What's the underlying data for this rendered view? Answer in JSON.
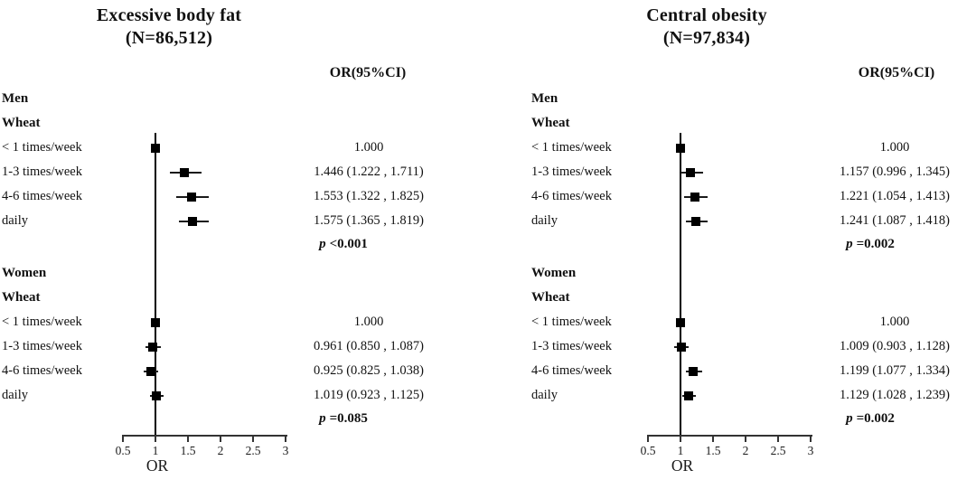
{
  "chart_data": [
    {
      "type": "forest",
      "title": "Excessive body fat",
      "n_label": "(N=86,512)",
      "or_header": "OR(95%CI)",
      "xlabel": "OR",
      "axis_ticks": [
        0.5,
        1,
        1.5,
        2,
        2.5,
        3
      ],
      "axis_tick_labels": [
        "0.5",
        "1",
        "1.5",
        "2",
        "2.5",
        "3"
      ],
      "axis_range": [
        0.5,
        3
      ],
      "reference_line": 1,
      "groups": [
        {
          "sex": "Men",
          "food": "Wheat",
          "p_sym": "p",
          "p_val": "<0.001",
          "rows": [
            {
              "label": "< 1 times/week",
              "or": 1.0,
              "ci_low": null,
              "ci_high": null,
              "or_text": "1.000"
            },
            {
              "label": "1-3 times/week",
              "or": 1.446,
              "ci_low": 1.222,
              "ci_high": 1.711,
              "or_text": "1.446 (1.222 , 1.711)"
            },
            {
              "label": "4-6 times/week",
              "or": 1.553,
              "ci_low": 1.322,
              "ci_high": 1.825,
              "or_text": "1.553 (1.322 , 1.825)"
            },
            {
              "label": "daily",
              "or": 1.575,
              "ci_low": 1.365,
              "ci_high": 1.819,
              "or_text": "1.575 (1.365 , 1.819)"
            }
          ]
        },
        {
          "sex": "Women",
          "food": "Wheat",
          "p_sym": "p",
          "p_val": "=0.085",
          "rows": [
            {
              "label": "< 1 times/week",
              "or": 1.0,
              "ci_low": null,
              "ci_high": null,
              "or_text": "1.000"
            },
            {
              "label": "1-3 times/week",
              "or": 0.961,
              "ci_low": 0.85,
              "ci_high": 1.087,
              "or_text": "0.961 (0.850 , 1.087)"
            },
            {
              "label": "4-6 times/week",
              "or": 0.925,
              "ci_low": 0.825,
              "ci_high": 1.038,
              "or_text": "0.925 (0.825 , 1.038)"
            },
            {
              "label": "daily",
              "or": 1.019,
              "ci_low": 0.923,
              "ci_high": 1.125,
              "or_text": "1.019 (0.923 , 1.125)"
            }
          ]
        }
      ]
    },
    {
      "type": "forest",
      "title": "Central obesity",
      "n_label": "(N=97,834)",
      "or_header": "OR(95%CI)",
      "xlabel": "OR",
      "axis_ticks": [
        0.5,
        1,
        1.5,
        2,
        2.5,
        3
      ],
      "axis_tick_labels": [
        "0.5",
        "1",
        "1.5",
        "2",
        "2.5",
        "3"
      ],
      "axis_range": [
        0.5,
        3
      ],
      "reference_line": 1,
      "groups": [
        {
          "sex": "Men",
          "food": "Wheat",
          "p_sym": "p",
          "p_val": "=0.002",
          "rows": [
            {
              "label": "< 1 times/week",
              "or": 1.0,
              "ci_low": null,
              "ci_high": null,
              "or_text": "1.000"
            },
            {
              "label": "1-3 times/week",
              "or": 1.157,
              "ci_low": 0.996,
              "ci_high": 1.345,
              "or_text": "1.157 (0.996 , 1.345)"
            },
            {
              "label": "4-6 times/week",
              "or": 1.221,
              "ci_low": 1.054,
              "ci_high": 1.413,
              "or_text": "1.221 (1.054 , 1.413)"
            },
            {
              "label": "daily",
              "or": 1.241,
              "ci_low": 1.087,
              "ci_high": 1.418,
              "or_text": "1.241 (1.087 , 1.418)"
            }
          ]
        },
        {
          "sex": "Women",
          "food": "Wheat",
          "p_sym": "p",
          "p_val": "=0.002",
          "rows": [
            {
              "label": "< 1 times/week",
              "or": 1.0,
              "ci_low": null,
              "ci_high": null,
              "or_text": "1.000"
            },
            {
              "label": "1-3 times/week",
              "or": 1.009,
              "ci_low": 0.903,
              "ci_high": 1.128,
              "or_text": "1.009 (0.903 , 1.128)"
            },
            {
              "label": "4-6 times/week",
              "or": 1.199,
              "ci_low": 1.077,
              "ci_high": 1.334,
              "or_text": "1.199 (1.077 , 1.334)"
            },
            {
              "label": "daily",
              "or": 1.129,
              "ci_low": 1.028,
              "ci_high": 1.239,
              "or_text": "1.129 (1.028 , 1.239)"
            }
          ]
        }
      ]
    }
  ],
  "colors": {
    "text": "#111111",
    "marker": "#000000",
    "reference_line": "#000000",
    "axis": "#333333",
    "background": "#ffffff"
  }
}
